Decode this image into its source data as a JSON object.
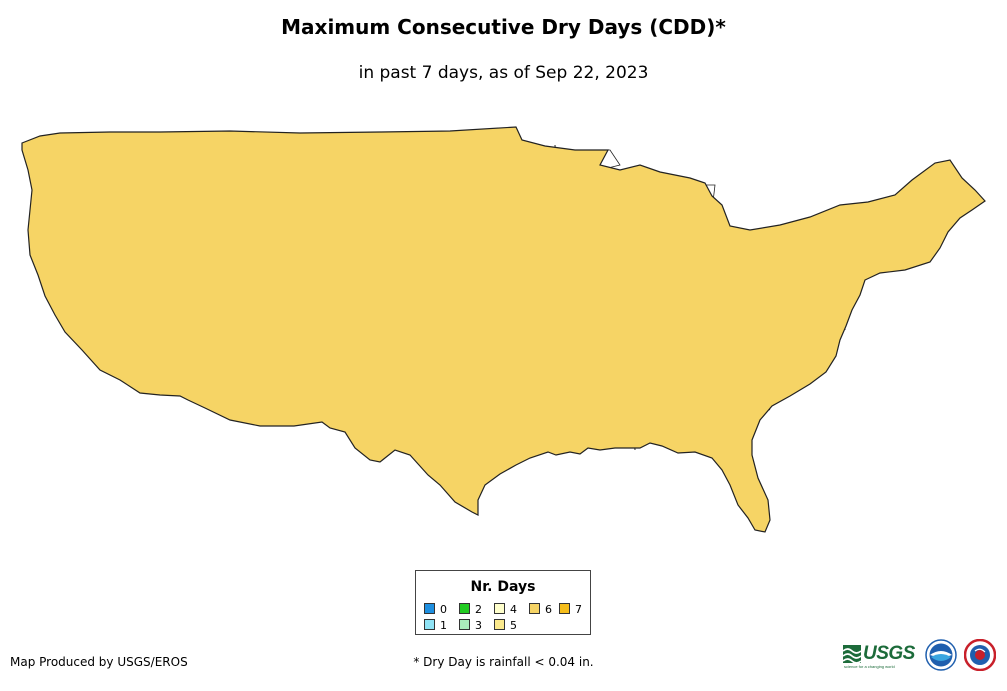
{
  "title": "Maximum Consecutive Dry Days (CDD)*",
  "subtitle": "in past 7 days, as of Sep 22, 2023",
  "legend": {
    "title": "Nr. Days",
    "items": [
      {
        "label": "0",
        "color": "#1e8fe0"
      },
      {
        "label": "1",
        "color": "#8fe3f5"
      },
      {
        "label": "2",
        "color": "#22cc22"
      },
      {
        "label": "3",
        "color": "#aaeebb"
      },
      {
        "label": "4",
        "color": "#ffffcc"
      },
      {
        "label": "5",
        "color": "#fbe98c"
      },
      {
        "label": "6",
        "color": "#f6d465"
      },
      {
        "label": "7",
        "color": "#f5bd1a"
      }
    ]
  },
  "credit": "Map Produced by USGS/EROS",
  "footnote": "* Dry Day is rainfall < 0.04 in.",
  "logos": {
    "usgs_text": "USGS",
    "usgs_tagline": "science for a changing world",
    "noaa_name": "NOAA logo",
    "nws_name": "National Weather Service logo"
  },
  "map": {
    "region": "Contiguous United States",
    "colors": {
      "land_default": "#f6d465",
      "state_border": "#222222",
      "water": "#ffffff"
    }
  }
}
